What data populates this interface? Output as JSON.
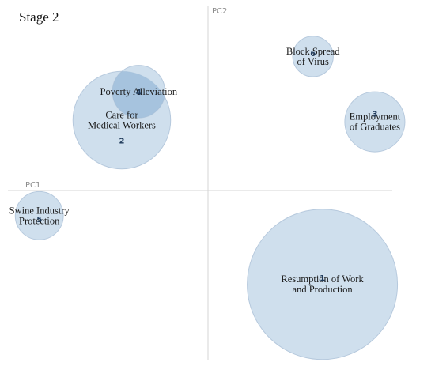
{
  "chart_data": {
    "type": "scatter",
    "title": "Stage 2",
    "xlabel": "PC1",
    "ylabel": "PC2",
    "xlim": [
      -1.0,
      1.0
    ],
    "ylim": [
      -1.0,
      1.0
    ],
    "grid": false,
    "bubble_color": "#bdd3e6",
    "overlap_color": "#8fb4d6",
    "points": [
      {
        "id": "1",
        "label": [
          "Resumption of Work",
          "and Production"
        ],
        "x": 0.61,
        "y": -0.56,
        "size": 1.0,
        "num_dx": 0.0,
        "num_dy": 0.04
      },
      {
        "id": "2",
        "label": [
          "Care for",
          "Medical Workers"
        ],
        "x": -0.46,
        "y": 0.42,
        "size": 0.65,
        "num_dx": 0.0,
        "num_dy": -0.12
      },
      {
        "id": "3",
        "label": [
          "Employment",
          "of Graduates"
        ],
        "x": 0.89,
        "y": 0.41,
        "size": 0.4,
        "num_dx": 0.0,
        "num_dy": 0.05
      },
      {
        "id": "4",
        "label": [
          "Poverty Alleviation"
        ],
        "x": -0.37,
        "y": 0.59,
        "size": 0.35,
        "num_dx": 0.0,
        "num_dy": 0.0
      },
      {
        "id": "5",
        "label": [
          "Swine Industry",
          "Protection"
        ],
        "x": -0.9,
        "y": -0.15,
        "size": 0.32,
        "num_dx": 0.0,
        "num_dy": -0.02
      },
      {
        "id": "6",
        "label": [
          "Block Spread",
          "of Virus"
        ],
        "x": 0.56,
        "y": 0.8,
        "size": 0.27,
        "num_dx": 0.0,
        "num_dy": 0.02
      }
    ]
  }
}
